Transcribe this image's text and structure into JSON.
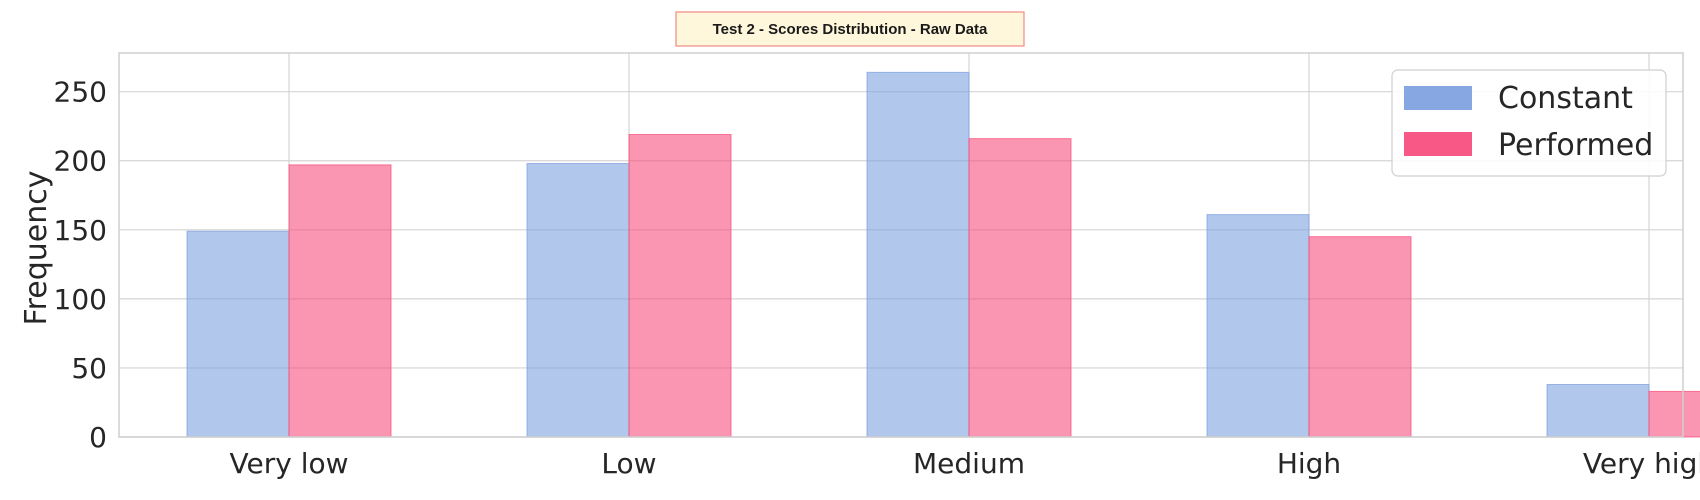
{
  "chart_data": {
    "type": "bar",
    "title": "Test 2 - Scores Distribution - Raw Data",
    "xlabel": "",
    "ylabel": "Frequency",
    "categories": [
      "Very low",
      "Low",
      "Medium",
      "High",
      "Very high"
    ],
    "ylim": [
      0,
      278
    ],
    "yticks": [
      0,
      50,
      100,
      150,
      200,
      250
    ],
    "grid": true,
    "legend_position": "top-right",
    "series": [
      {
        "name": "Constant",
        "values": [
          149,
          198,
          264,
          161,
          38
        ],
        "color": "#7fa2df",
        "fill_opacity": 0.6
      },
      {
        "name": "Performed",
        "values": [
          197,
          219,
          216,
          145,
          33
        ],
        "color": "#f74f7e",
        "fill_opacity": 0.6
      }
    ],
    "title_box": {
      "fill": "#fff7dc",
      "stroke": "#f08a80"
    }
  }
}
